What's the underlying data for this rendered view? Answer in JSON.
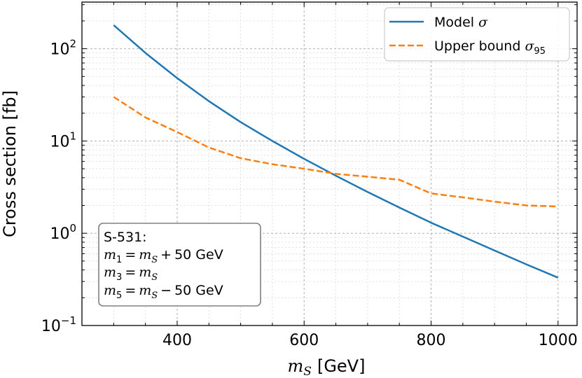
{
  "chart_data": {
    "type": "line",
    "title": "",
    "xlabel": {
      "symbol": "m",
      "sub": "S",
      "unit": "[GeV]"
    },
    "ylabel": "Cross section [fb]",
    "xscale": "linear",
    "yscale": "log",
    "xlim": [
      250,
      1030
    ],
    "ylim": [
      0.1,
      320
    ],
    "grid": true,
    "legend_position": "top-right",
    "x_ticks": [
      {
        "value": 400,
        "label": "400"
      },
      {
        "value": 600,
        "label": "600"
      },
      {
        "value": 800,
        "label": "800"
      },
      {
        "value": 1000,
        "label": "1000"
      }
    ],
    "y_ticks": [
      {
        "value": 0.1,
        "base": "10",
        "exp": "−1"
      },
      {
        "value": 1,
        "base": "10",
        "exp": "0"
      },
      {
        "value": 10,
        "base": "10",
        "exp": "1"
      },
      {
        "value": 100,
        "base": "10",
        "exp": "2"
      }
    ],
    "series": [
      {
        "name": "Model σ",
        "legend": {
          "text": "Model ",
          "symbol": "σ",
          "sub": ""
        },
        "color": "#1f77b4",
        "style": "solid",
        "x": [
          300,
          350,
          400,
          450,
          500,
          550,
          600,
          650,
          700,
          750,
          800,
          850,
          900,
          950,
          1000
        ],
        "values": [
          180,
          90,
          48,
          27,
          16,
          10,
          6.4,
          4.2,
          2.8,
          1.9,
          1.3,
          0.92,
          0.65,
          0.46,
          0.33
        ]
      },
      {
        "name": "Upper bound σ95",
        "legend": {
          "text": "Upper bound ",
          "symbol": "σ",
          "sub": "95"
        },
        "color": "#ff7f0e",
        "style": "dashed",
        "x": [
          300,
          350,
          400,
          450,
          500,
          550,
          600,
          650,
          700,
          750,
          800,
          850,
          900,
          950,
          1000
        ],
        "values": [
          30,
          18,
          12.5,
          8.5,
          6.5,
          5.6,
          5.0,
          4.4,
          4.1,
          3.8,
          2.7,
          2.45,
          2.2,
          2.0,
          1.95
        ]
      }
    ],
    "annotation": {
      "title": "S-531:",
      "lines": [
        {
          "lhs": "m",
          "lhs_sub": "1",
          "rhs": "m",
          "rhs_sub": "S",
          "op": "+",
          "val": "50",
          "unit": "GeV"
        },
        {
          "lhs": "m",
          "lhs_sub": "3",
          "rhs": "m",
          "rhs_sub": "S",
          "op": "",
          "val": "",
          "unit": ""
        },
        {
          "lhs": "m",
          "lhs_sub": "5",
          "rhs": "m",
          "rhs_sub": "S",
          "op": "−",
          "val": "50",
          "unit": "GeV"
        }
      ]
    }
  }
}
